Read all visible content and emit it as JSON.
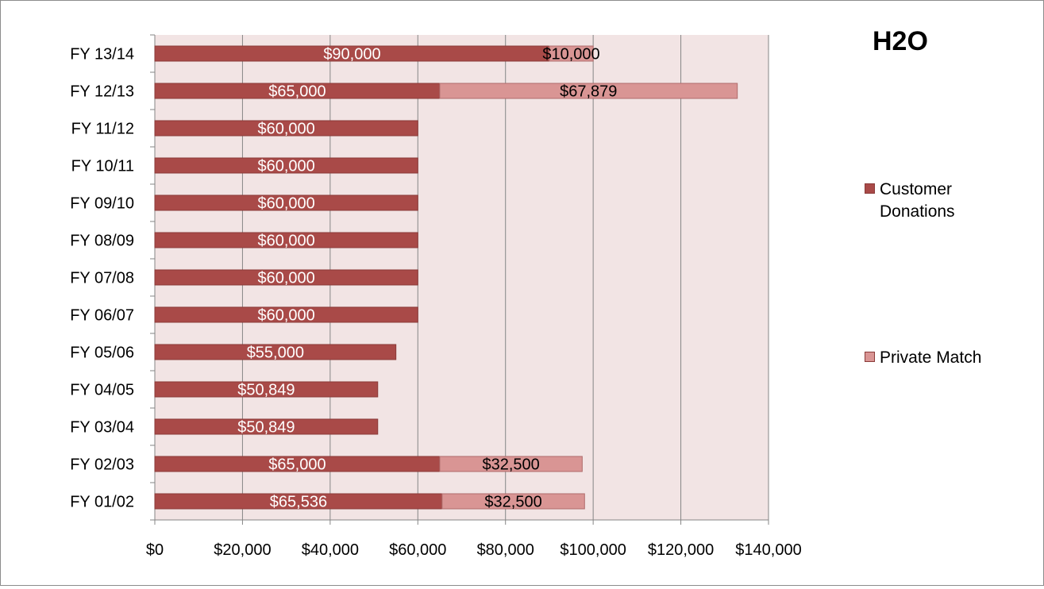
{
  "chart_data": {
    "type": "bar",
    "orientation": "horizontal",
    "stacked": true,
    "title": "H2O",
    "categories": [
      "FY 13/14",
      "FY 12/13",
      "FY 11/12",
      "FY 10/11",
      "FY 09/10",
      "FY 08/09",
      "FY 07/08",
      "FY 06/07",
      "FY 05/06",
      "FY 04/05",
      "FY 03/04",
      "FY 02/03",
      "FY 01/02"
    ],
    "series": [
      {
        "name": "Customer Donations",
        "color": "#a94a48",
        "values": [
          90000,
          65000,
          60000,
          60000,
          60000,
          60000,
          60000,
          60000,
          55000,
          50849,
          50849,
          65000,
          65536
        ],
        "labels": [
          "$90,000",
          "$65,000",
          "$60,000",
          "$60,000",
          "$60,000",
          "$60,000",
          "$60,000",
          "$60,000",
          "$55,000",
          "$50,849",
          "$50,849",
          "$65,000",
          "$65,536"
        ]
      },
      {
        "name": "Private Match",
        "color": "#d99594",
        "values": [
          10000,
          67879,
          0,
          0,
          0,
          0,
          0,
          0,
          0,
          0,
          0,
          32500,
          32500
        ],
        "labels": [
          "$10,000",
          "$67,879",
          "",
          "",
          "",
          "",
          "",
          "",
          "",
          "",
          "",
          "$32,500",
          "$32,500"
        ]
      }
    ],
    "xlim": [
      0,
      140000
    ],
    "x_ticks": [
      0,
      20000,
      40000,
      60000,
      80000,
      100000,
      120000,
      140000
    ],
    "x_tick_labels": [
      "$0",
      "$20,000",
      "$40,000",
      "$60,000",
      "$80,000",
      "$100,000",
      "$120,000",
      "$140,000"
    ],
    "grid": true,
    "legend_position": "right",
    "plot_background": "#f2e4e4"
  }
}
